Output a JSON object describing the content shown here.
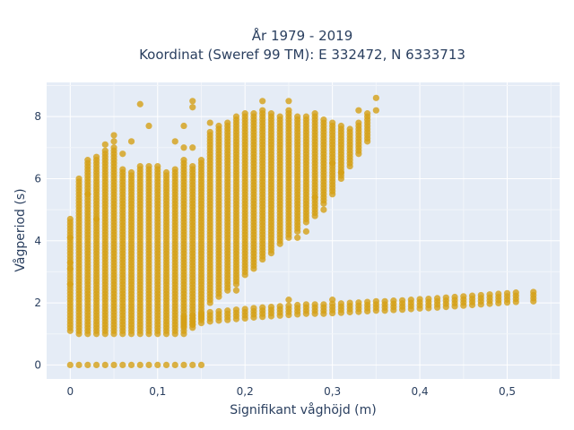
{
  "chart_data": {
    "type": "scatter",
    "title_line1": "År 1979 - 2019",
    "title_line2": "Koordinat (Sweref 99 TM): E 332472, N 6333713",
    "xlabel": "Signifikant våghöjd (m)",
    "ylabel": "Vågperiod (s)",
    "xlim": [
      -0.027,
      0.56
    ],
    "ylim": [
      -0.45,
      9.1
    ],
    "x_ticks": [
      0,
      0.1,
      0.2,
      0.3,
      0.4,
      0.5
    ],
    "x_tick_labels": [
      "0",
      "0,1",
      "0,2",
      "0,3",
      "0,4",
      "0,5"
    ],
    "y_ticks": [
      0,
      2,
      4,
      6,
      8
    ],
    "y_tick_labels": [
      "0",
      "2",
      "4",
      "6",
      "8"
    ],
    "grid": true,
    "legend": "none",
    "x_step": 0.01,
    "point_color": "#d4a017",
    "plot_bg": "#e5ecf6",
    "columns": [
      {
        "x": 0.0,
        "y_min": 1.1,
        "y_max": 4.6
      },
      {
        "x": 0.01,
        "y_min": 1.0,
        "y_max": 6.0
      },
      {
        "x": 0.02,
        "y_min": 1.0,
        "y_max": 6.6
      },
      {
        "x": 0.03,
        "y_min": 1.0,
        "y_max": 6.7
      },
      {
        "x": 0.04,
        "y_min": 1.0,
        "y_max": 6.9
      },
      {
        "x": 0.05,
        "y_min": 1.0,
        "y_max": 7.0
      },
      {
        "x": 0.06,
        "y_min": 1.0,
        "y_max": 6.3
      },
      {
        "x": 0.07,
        "y_min": 1.0,
        "y_max": 6.2
      },
      {
        "x": 0.08,
        "y_min": 1.0,
        "y_max": 6.4
      },
      {
        "x": 0.09,
        "y_min": 1.0,
        "y_max": 6.4
      },
      {
        "x": 0.1,
        "y_min": 1.0,
        "y_max": 6.4
      },
      {
        "x": 0.11,
        "y_min": 1.0,
        "y_max": 6.2
      },
      {
        "x": 0.12,
        "y_min": 1.0,
        "y_max": 6.3
      },
      {
        "x": 0.13,
        "y_min": 1.0,
        "y_max": 6.6
      },
      {
        "x": 0.14,
        "y_min": 1.2,
        "y_max": 6.4
      },
      {
        "x": 0.15,
        "y_min": 1.5,
        "y_max": 6.6
      },
      {
        "x": 0.16,
        "y_min": 2.0,
        "y_max": 7.5
      },
      {
        "x": 0.17,
        "y_min": 2.2,
        "y_max": 7.7
      },
      {
        "x": 0.18,
        "y_min": 2.4,
        "y_max": 7.8
      },
      {
        "x": 0.19,
        "y_min": 2.6,
        "y_max": 8.0
      },
      {
        "x": 0.2,
        "y_min": 2.9,
        "y_max": 8.1
      },
      {
        "x": 0.21,
        "y_min": 3.1,
        "y_max": 8.1
      },
      {
        "x": 0.22,
        "y_min": 3.4,
        "y_max": 8.2
      },
      {
        "x": 0.23,
        "y_min": 3.6,
        "y_max": 8.1
      },
      {
        "x": 0.24,
        "y_min": 3.9,
        "y_max": 8.0
      },
      {
        "x": 0.25,
        "y_min": 4.1,
        "y_max": 8.2
      },
      {
        "x": 0.26,
        "y_min": 4.3,
        "y_max": 8.0
      },
      {
        "x": 0.27,
        "y_min": 4.6,
        "y_max": 8.0
      },
      {
        "x": 0.28,
        "y_min": 4.8,
        "y_max": 8.1
      },
      {
        "x": 0.29,
        "y_min": 5.2,
        "y_max": 7.9
      },
      {
        "x": 0.3,
        "y_min": 5.5,
        "y_max": 7.8
      },
      {
        "x": 0.31,
        "y_min": 6.0,
        "y_max": 7.7
      },
      {
        "x": 0.32,
        "y_min": 6.4,
        "y_max": 7.6
      },
      {
        "x": 0.33,
        "y_min": 6.8,
        "y_max": 7.8
      },
      {
        "x": 0.34,
        "y_min": 7.2,
        "y_max": 8.0
      }
    ],
    "lower_band": [
      {
        "x": 0.13,
        "y": 1.4
      },
      {
        "x": 0.14,
        "y": 1.45
      },
      {
        "x": 0.15,
        "y": 1.5
      },
      {
        "x": 0.16,
        "y": 1.55
      },
      {
        "x": 0.17,
        "y": 1.58
      },
      {
        "x": 0.18,
        "y": 1.6
      },
      {
        "x": 0.19,
        "y": 1.63
      },
      {
        "x": 0.2,
        "y": 1.65
      },
      {
        "x": 0.21,
        "y": 1.68
      },
      {
        "x": 0.22,
        "y": 1.7
      },
      {
        "x": 0.23,
        "y": 1.72
      },
      {
        "x": 0.24,
        "y": 1.74
      },
      {
        "x": 0.25,
        "y": 1.76
      },
      {
        "x": 0.26,
        "y": 1.78
      },
      {
        "x": 0.27,
        "y": 1.8
      },
      {
        "x": 0.28,
        "y": 1.8
      },
      {
        "x": 0.29,
        "y": 1.8
      },
      {
        "x": 0.3,
        "y": 1.82
      },
      {
        "x": 0.31,
        "y": 1.83
      },
      {
        "x": 0.32,
        "y": 1.85
      },
      {
        "x": 0.33,
        "y": 1.86
      },
      {
        "x": 0.34,
        "y": 1.88
      },
      {
        "x": 0.35,
        "y": 1.9
      },
      {
        "x": 0.36,
        "y": 1.9
      },
      {
        "x": 0.37,
        "y": 1.92
      },
      {
        "x": 0.38,
        "y": 1.93
      },
      {
        "x": 0.39,
        "y": 1.95
      },
      {
        "x": 0.4,
        "y": 1.97
      },
      {
        "x": 0.41,
        "y": 1.98
      },
      {
        "x": 0.42,
        "y": 2.0
      },
      {
        "x": 0.43,
        "y": 2.02
      },
      {
        "x": 0.44,
        "y": 2.04
      },
      {
        "x": 0.45,
        "y": 2.06
      },
      {
        "x": 0.46,
        "y": 2.08
      },
      {
        "x": 0.47,
        "y": 2.1
      },
      {
        "x": 0.48,
        "y": 2.12
      },
      {
        "x": 0.49,
        "y": 2.14
      },
      {
        "x": 0.5,
        "y": 2.16
      },
      {
        "x": 0.51,
        "y": 2.18
      },
      {
        "x": 0.53,
        "y": 2.2
      }
    ],
    "zero_row": {
      "y": 0,
      "x_values": [
        0.0,
        0.01,
        0.02,
        0.03,
        0.04,
        0.05,
        0.06,
        0.07,
        0.08,
        0.09,
        0.1,
        0.11,
        0.12,
        0.13,
        0.14,
        0.15
      ]
    },
    "scatter_outliers": [
      {
        "x": 0.08,
        "y": 8.4
      },
      {
        "x": 0.09,
        "y": 7.7
      },
      {
        "x": 0.14,
        "y": 8.5
      },
      {
        "x": 0.14,
        "y": 8.3
      },
      {
        "x": 0.13,
        "y": 7.7
      },
      {
        "x": 0.12,
        "y": 7.2
      },
      {
        "x": 0.13,
        "y": 7.0
      },
      {
        "x": 0.14,
        "y": 7.0
      },
      {
        "x": 0.05,
        "y": 7.4
      },
      {
        "x": 0.05,
        "y": 7.2
      },
      {
        "x": 0.04,
        "y": 7.1
      },
      {
        "x": 0.07,
        "y": 7.2
      },
      {
        "x": 0.06,
        "y": 6.8
      },
      {
        "x": 0.16,
        "y": 7.8
      },
      {
        "x": 0.19,
        "y": 2.4
      },
      {
        "x": 0.25,
        "y": 2.1
      },
      {
        "x": 0.3,
        "y": 2.1
      },
      {
        "x": 0.35,
        "y": 8.6
      },
      {
        "x": 0.35,
        "y": 8.2
      },
      {
        "x": 0.34,
        "y": 8.1
      },
      {
        "x": 0.33,
        "y": 8.2
      },
      {
        "x": 0.25,
        "y": 8.5
      },
      {
        "x": 0.22,
        "y": 8.5
      },
      {
        "x": 0.31,
        "y": 6.2
      },
      {
        "x": 0.3,
        "y": 6.5
      },
      {
        "x": 0.28,
        "y": 5.4
      },
      {
        "x": 0.27,
        "y": 4.3
      },
      {
        "x": 0.26,
        "y": 4.1
      },
      {
        "x": 0.29,
        "y": 5.0
      },
      {
        "x": 0.0,
        "y": 2.6
      },
      {
        "x": 0.0,
        "y": 3.1
      },
      {
        "x": 0.0,
        "y": 3.3
      },
      {
        "x": 0.0,
        "y": 4.1
      },
      {
        "x": 0.0,
        "y": 4.7
      },
      {
        "x": 0.02,
        "y": 5.5
      },
      {
        "x": 0.03,
        "y": 4.7
      }
    ]
  }
}
